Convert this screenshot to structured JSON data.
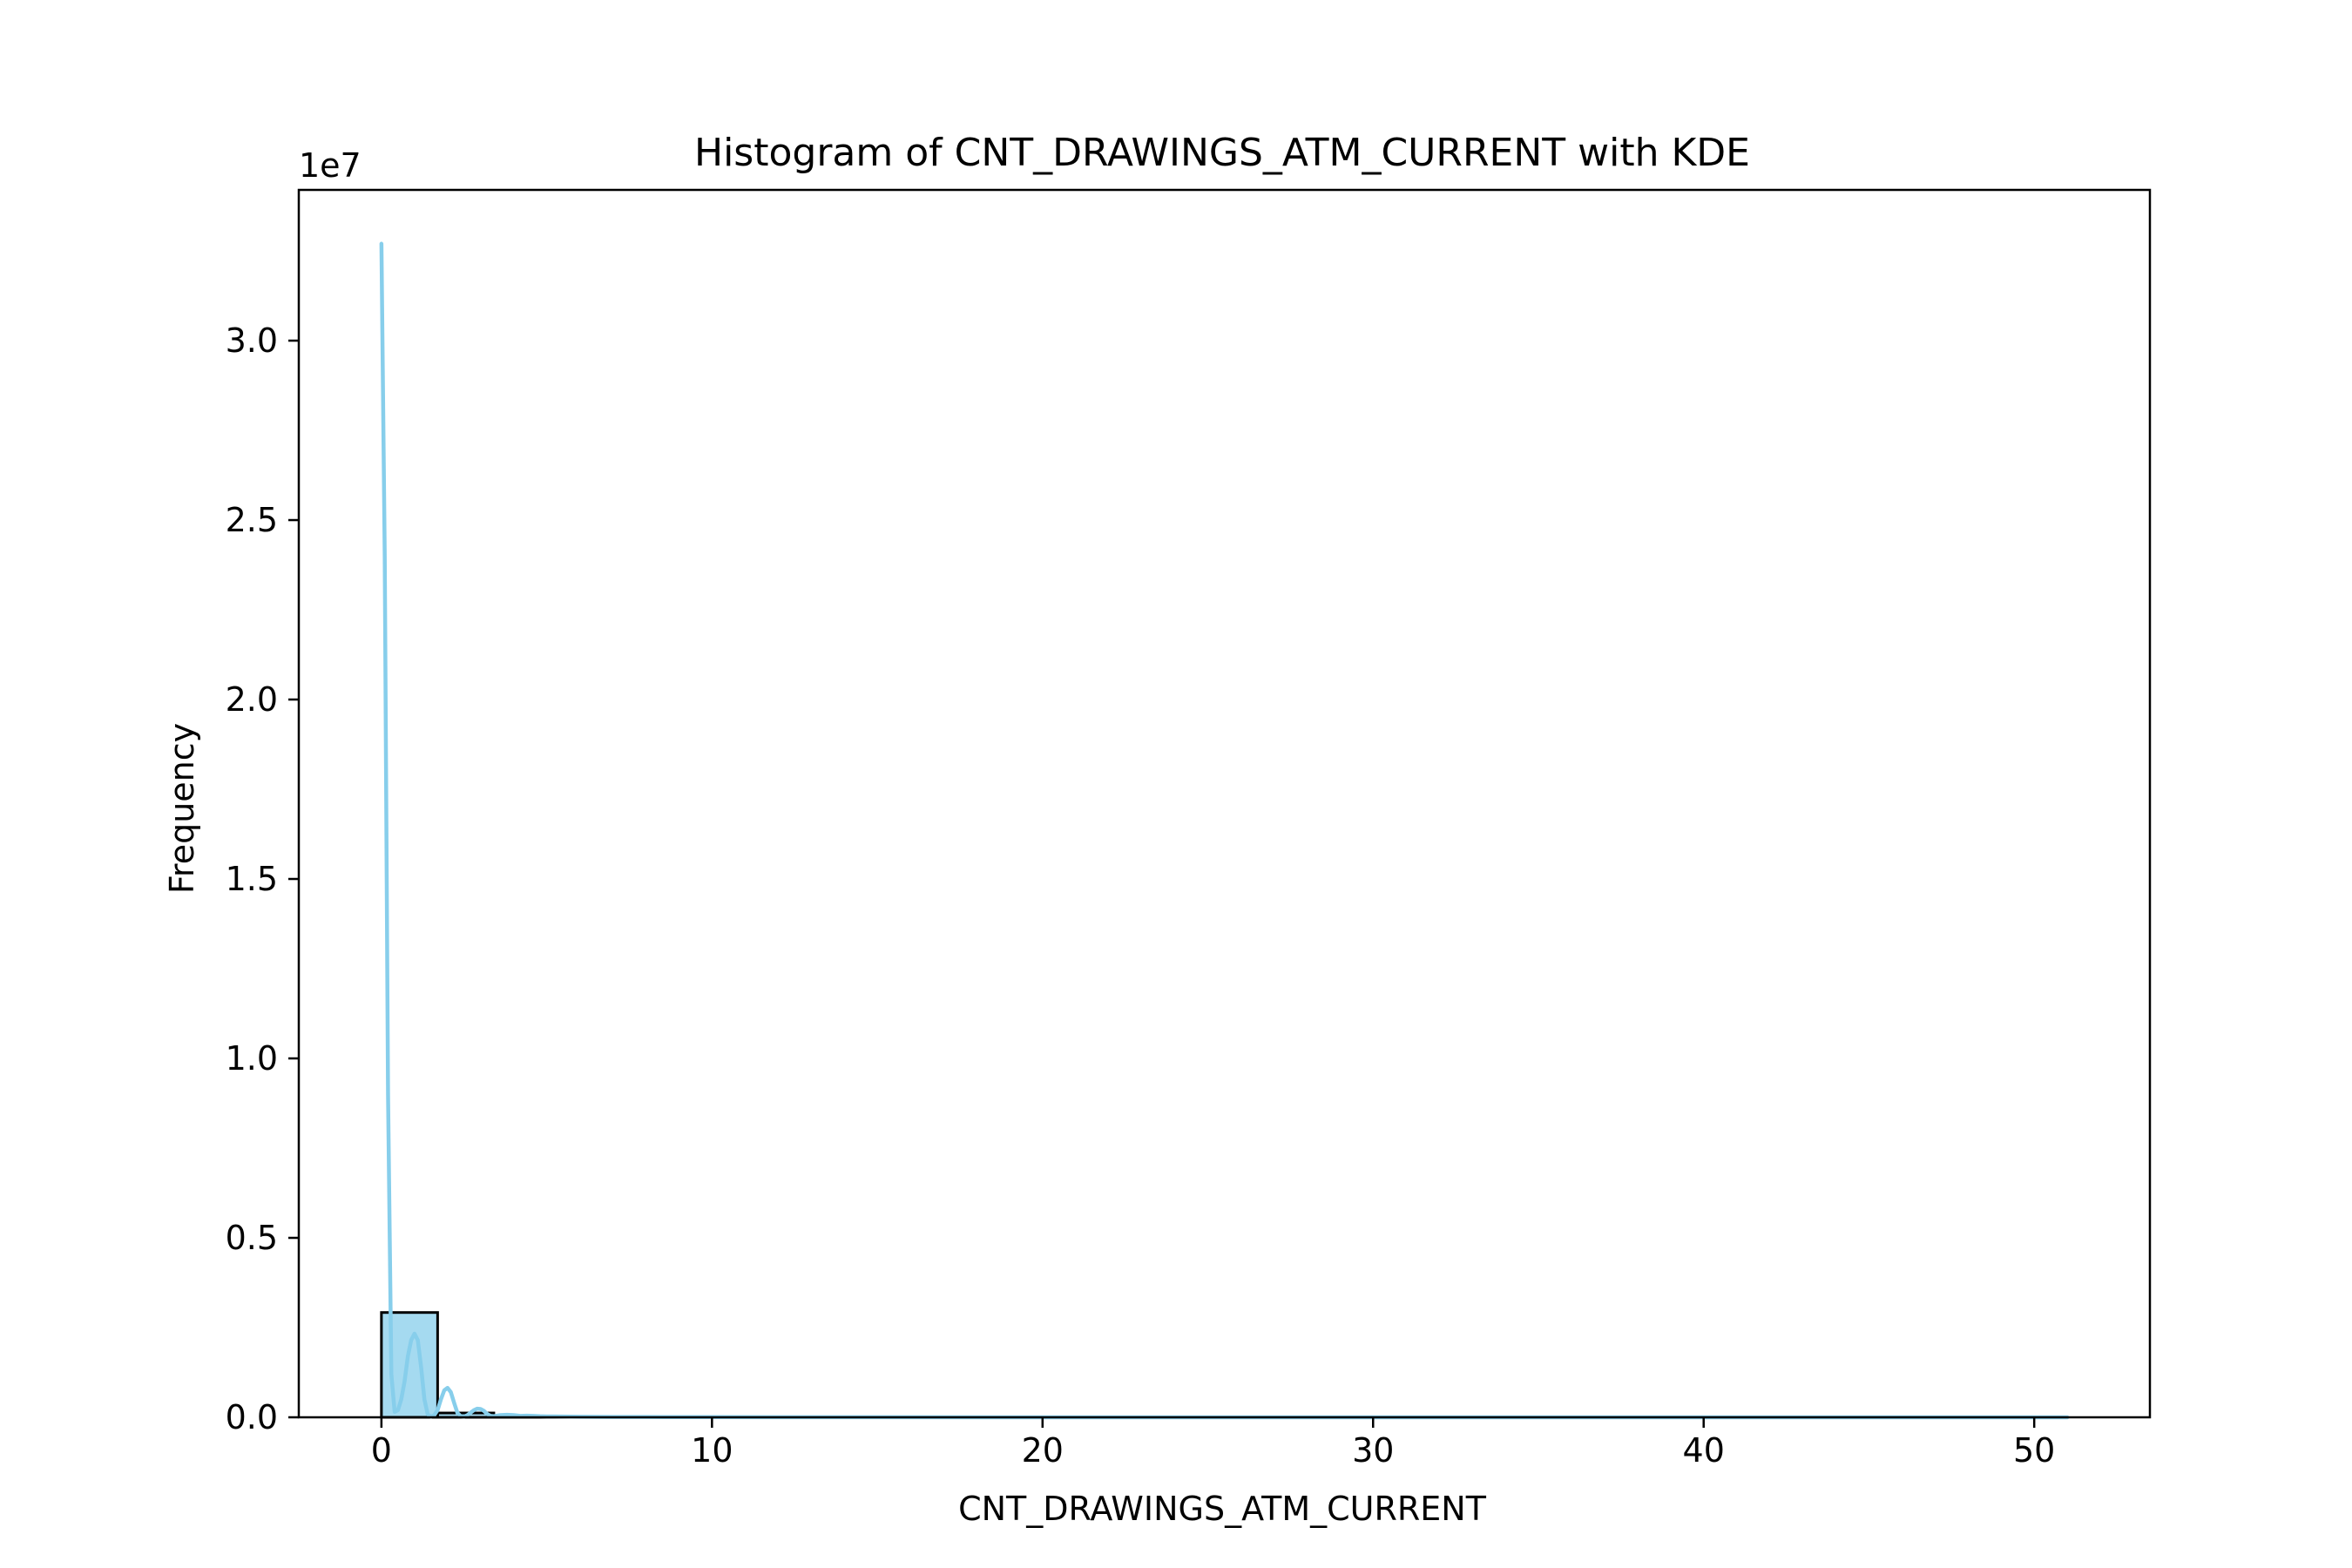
{
  "chart_data": {
    "type": "bar",
    "title": "Histogram of CNT_DRAWINGS_ATM_CURRENT with KDE",
    "xlabel": "CNT_DRAWINGS_ATM_CURRENT",
    "ylabel": "Frequency",
    "y_offset_label": "1e7",
    "xlim": [
      -2.5,
      53.5
    ],
    "ylim": [
      0,
      34200000
    ],
    "x_ticks": [
      0,
      10,
      20,
      30,
      40,
      50
    ],
    "x_tick_labels": [
      "0",
      "10",
      "20",
      "30",
      "40",
      "50"
    ],
    "y_ticks": [
      0,
      5000000,
      10000000,
      15000000,
      20000000,
      25000000,
      30000000
    ],
    "y_tick_labels": [
      "0.0",
      "0.5",
      "1.0",
      "1.5",
      "2.0",
      "2.5",
      "3.0"
    ],
    "bin_width": 1.7,
    "bins": [
      {
        "x0": 0.0,
        "x1": 1.7,
        "count": 2920000
      },
      {
        "x0": 1.7,
        "x1": 3.4,
        "count": 120000
      },
      {
        "x0": 3.4,
        "x1": 5.1,
        "count": 20000
      },
      {
        "x0": 5.1,
        "x1": 6.8,
        "count": 6000
      },
      {
        "x0": 6.8,
        "x1": 8.5,
        "count": 3000
      },
      {
        "x0": 8.5,
        "x1": 10.2,
        "count": 1500
      },
      {
        "x0": 10.2,
        "x1": 11.9,
        "count": 800
      },
      {
        "x0": 11.9,
        "x1": 13.6,
        "count": 400
      },
      {
        "x0": 13.6,
        "x1": 15.3,
        "count": 200
      },
      {
        "x0": 15.3,
        "x1": 17.0,
        "count": 100
      }
    ],
    "kde": {
      "name": "KDE",
      "x": [
        0.0,
        0.1,
        0.2,
        0.3,
        0.4,
        0.5,
        0.6,
        0.7,
        0.8,
        0.9,
        1.0,
        1.1,
        1.2,
        1.3,
        1.4,
        1.5,
        1.6,
        1.7,
        1.8,
        1.9,
        2.0,
        2.1,
        2.2,
        2.3,
        2.4,
        2.5,
        2.6,
        2.7,
        2.8,
        2.9,
        3.0,
        3.1,
        3.2,
        3.3,
        3.4,
        3.6,
        3.8,
        4.0,
        4.2,
        4.4,
        4.6,
        4.8,
        5.0,
        6.0,
        7.0,
        8.0,
        9.0,
        10.0,
        15.0,
        20.0,
        30.0,
        40.0,
        51.0
      ],
      "y": [
        32700000,
        24000000,
        9000000,
        1200000,
        150000,
        200000,
        500000,
        1000000,
        1700000,
        2150000,
        2330000,
        2150000,
        1400000,
        500000,
        80000,
        20000,
        60000,
        200000,
        500000,
        750000,
        820000,
        700000,
        400000,
        120000,
        30000,
        20000,
        60000,
        130000,
        200000,
        240000,
        230000,
        180000,
        90000,
        40000,
        30000,
        60000,
        70000,
        60000,
        40000,
        45000,
        40000,
        30000,
        25000,
        15000,
        10000,
        8000,
        6000,
        5000,
        2000,
        1000,
        500,
        300,
        0
      ],
      "color": "#87ceeb"
    },
    "colors": {
      "bar_fill": "#87ceeb",
      "bar_edge": "#000000",
      "kde_line": "#87ceeb"
    },
    "grid": false
  }
}
